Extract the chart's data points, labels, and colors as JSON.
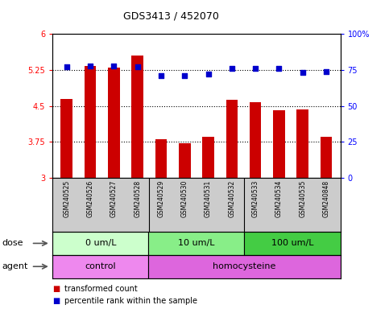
{
  "title": "GDS3413 / 452070",
  "samples": [
    "GSM240525",
    "GSM240526",
    "GSM240527",
    "GSM240528",
    "GSM240529",
    "GSM240530",
    "GSM240531",
    "GSM240532",
    "GSM240533",
    "GSM240534",
    "GSM240535",
    "GSM240848"
  ],
  "bar_values": [
    4.65,
    5.33,
    5.3,
    5.55,
    3.8,
    3.72,
    3.85,
    4.62,
    4.58,
    4.4,
    4.42,
    3.85
  ],
  "dot_values": [
    77,
    78,
    78,
    77,
    71,
    71,
    72,
    76,
    76,
    76,
    73,
    74
  ],
  "bar_color": "#cc0000",
  "dot_color": "#0000cc",
  "ylim_left": [
    3.0,
    6.0
  ],
  "ylim_right": [
    0,
    100
  ],
  "yticks_left": [
    3.0,
    3.75,
    4.5,
    5.25,
    6.0
  ],
  "ytick_labels_left": [
    "3",
    "3.75",
    "4.5",
    "5.25",
    "6"
  ],
  "yticks_right": [
    0,
    25,
    50,
    75,
    100
  ],
  "ytick_labels_right": [
    "0",
    "25",
    "50",
    "75",
    "100%"
  ],
  "hlines": [
    3.75,
    4.5,
    5.25
  ],
  "dose_groups": [
    {
      "label": "0 um/L",
      "start": 0,
      "end": 4,
      "color": "#ccffcc"
    },
    {
      "label": "10 um/L",
      "start": 4,
      "end": 8,
      "color": "#88ee88"
    },
    {
      "label": "100 um/L",
      "start": 8,
      "end": 12,
      "color": "#44cc44"
    }
  ],
  "agent_groups": [
    {
      "label": "control",
      "start": 0,
      "end": 4,
      "color": "#ee88ee"
    },
    {
      "label": "homocysteine",
      "start": 4,
      "end": 12,
      "color": "#dd66dd"
    }
  ],
  "legend_bar_label": "transformed count",
  "legend_dot_label": "percentile rank within the sample",
  "dose_label": "dose",
  "agent_label": "agent",
  "bg_color": "#ffffff",
  "plot_bg_color": "#ffffff",
  "tick_area_color": "#cccccc",
  "bar_width": 0.5
}
